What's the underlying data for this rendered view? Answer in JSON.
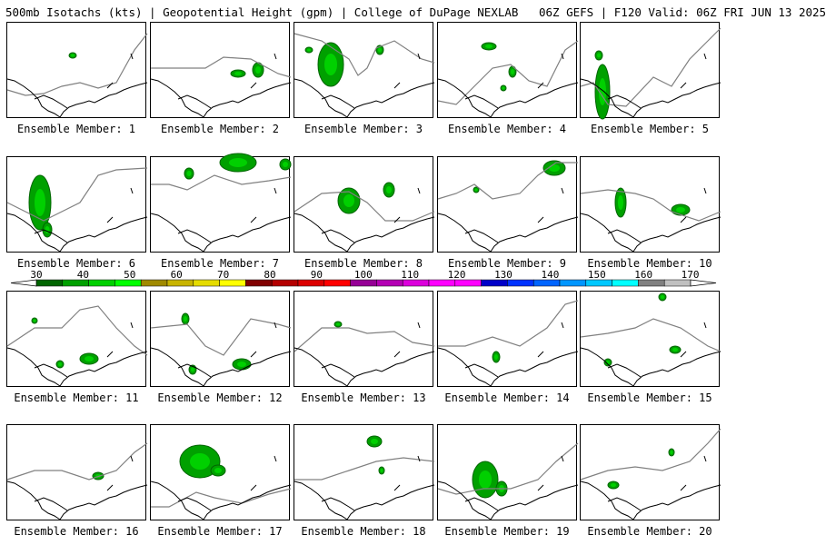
{
  "title": "500mb Isotachs (kts) | Geopotential Height (gpm) | College of DuPage NEXLAB   06Z GEFS | F120 Valid: 06Z FRI JUN 13 2025",
  "colorbar": {
    "ticks": [
      "30",
      "40",
      "50",
      "60",
      "70",
      "80",
      "90",
      "100",
      "110",
      "120",
      "130",
      "140",
      "150",
      "160",
      "170"
    ],
    "colors": [
      "#006400",
      "#00a000",
      "#00d000",
      "#00ff00",
      "#a08a00",
      "#c8b400",
      "#e6dc00",
      "#ffff00",
      "#800000",
      "#b40000",
      "#dc0000",
      "#ff0000",
      "#960096",
      "#b400b4",
      "#dc00dc",
      "#ff00ff",
      "#ff00ff",
      "#0000c8",
      "#0032ff",
      "#0064ff",
      "#0096ff",
      "#00c8ff",
      "#00ffff",
      "#808080",
      "#c0c0c0"
    ]
  },
  "members": [
    {
      "label": "Ensemble Member: 1"
    },
    {
      "label": "Ensemble Member: 2"
    },
    {
      "label": "Ensemble Member: 3"
    },
    {
      "label": "Ensemble Member: 4"
    },
    {
      "label": "Ensemble Member: 5"
    },
    {
      "label": "Ensemble Member: 6"
    },
    {
      "label": "Ensemble Member: 7"
    },
    {
      "label": "Ensemble Member: 8"
    },
    {
      "label": "Ensemble Member: 9"
    },
    {
      "label": "Ensemble Member: 10"
    },
    {
      "label": "Ensemble Member: 11"
    },
    {
      "label": "Ensemble Member: 12"
    },
    {
      "label": "Ensemble Member: 13"
    },
    {
      "label": "Ensemble Member: 14"
    },
    {
      "label": "Ensemble Member: 15"
    },
    {
      "label": "Ensemble Member: 16"
    },
    {
      "label": "Ensemble Member: 17"
    },
    {
      "label": "Ensemble Member: 18"
    },
    {
      "label": "Ensemble Member: 19"
    },
    {
      "label": "Ensemble Member: 20"
    }
  ]
}
